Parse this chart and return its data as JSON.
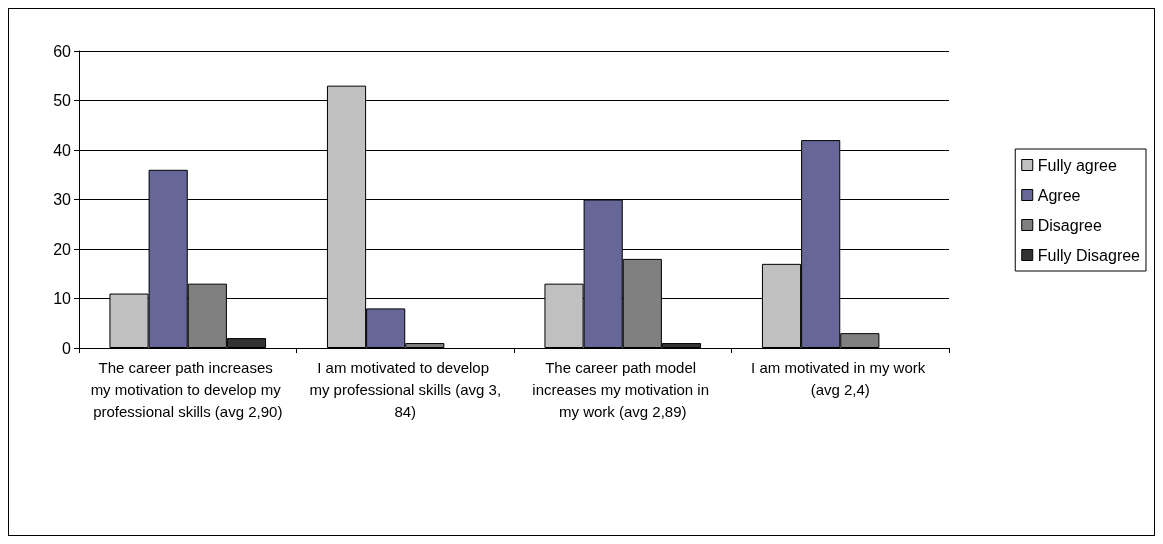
{
  "chart_data": {
    "type": "bar",
    "categories": [
      "The career path increases my motivation to develop my professional skills (avg 2,90)",
      "I am motivated to develop my professional skills (avg 3,84)",
      "The career path model increases my motivation in my work (avg 2,89)",
      "I am motivated in my work (avg 2,4)"
    ],
    "series": [
      {
        "name": "Fully agree",
        "color": "#c0c0c0",
        "values": [
          11,
          53,
          13,
          17
        ]
      },
      {
        "name": "Agree",
        "color": "#666699",
        "values": [
          36,
          8,
          30,
          42
        ]
      },
      {
        "name": "Disagree",
        "color": "#808080",
        "values": [
          13,
          1,
          18,
          3
        ]
      },
      {
        "name": "Fully Disagree",
        "color": "#333333",
        "values": [
          2,
          null,
          1,
          null
        ]
      }
    ],
    "ylim": [
      0,
      60
    ],
    "yticks": [
      0,
      10,
      20,
      30,
      40,
      50,
      60
    ],
    "grid": "y",
    "legend": "right"
  }
}
